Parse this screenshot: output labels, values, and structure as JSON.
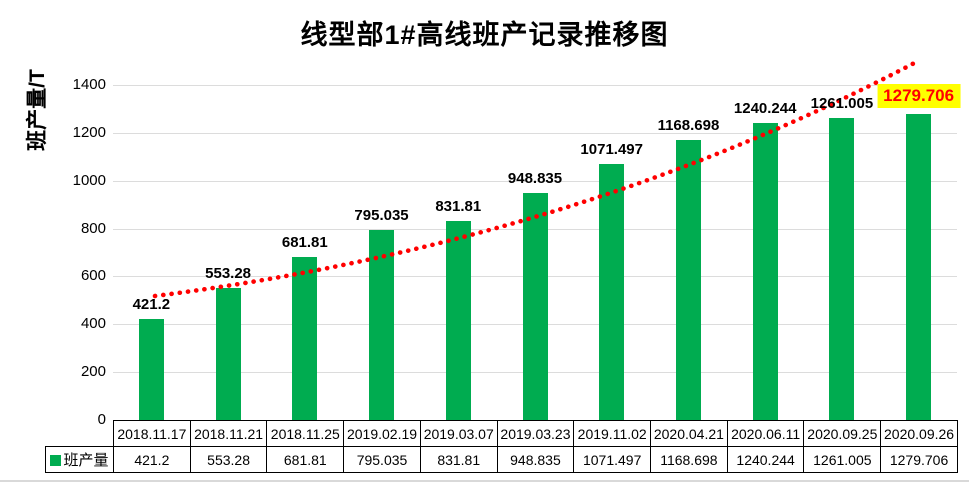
{
  "chart_data": {
    "type": "bar",
    "title": "线型部1#高线班产记录推移图",
    "ylabel": "班产量/T",
    "categories": [
      "2018.11.17",
      "2018.11.21",
      "2018.11.25",
      "2019.02.19",
      "2019.03.07",
      "2019.03.23",
      "2019.11.02",
      "2020.04.21",
      "2020.06.11",
      "2020.09.25",
      "2020.09.26"
    ],
    "series": [
      {
        "name": "班产量",
        "color": "#00AC50",
        "values": [
          421.2,
          553.28,
          681.81,
          795.035,
          831.81,
          948.835,
          1071.497,
          1168.698,
          1240.244,
          1261.005,
          1279.706
        ]
      }
    ],
    "data_labels": [
      "421.2",
      "553.28",
      "681.81",
      "795.035",
      "831.81",
      "948.835",
      "1071.497",
      "1168.698",
      "1240.244",
      "1261.005",
      "1279.706"
    ],
    "ylim": [
      0,
      1400
    ],
    "yticks": [
      0,
      200,
      400,
      600,
      800,
      1000,
      1200,
      1400
    ],
    "grid": true,
    "gridline_color": "#DCDCDC",
    "legend_position": "data-table-left",
    "highlighted_label": {
      "index": 10,
      "text": "1279.706",
      "text_color": "#FF0000",
      "background": "#FFFF00"
    },
    "trendline": {
      "style": "round-dotted",
      "color": "#FF0000"
    }
  }
}
